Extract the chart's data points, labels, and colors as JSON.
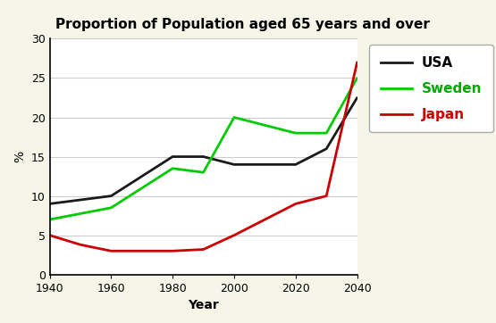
{
  "title": "Proportion of Population aged 65 years and over",
  "xlabel": "Year",
  "ylabel": "%",
  "xlim": [
    1940,
    2040
  ],
  "ylim": [
    0,
    30
  ],
  "xticks": [
    1940,
    1960,
    1980,
    2000,
    2020,
    2040
  ],
  "yticks": [
    0,
    5,
    10,
    15,
    20,
    25,
    30
  ],
  "figure_bg": "#f5f5e8",
  "plot_bg": "#ffffff",
  "series": {
    "USA": {
      "x": [
        1940,
        1960,
        1980,
        1990,
        2000,
        2020,
        2030,
        2040
      ],
      "y": [
        9,
        10,
        15,
        15,
        14,
        14,
        16,
        22.5
      ],
      "color": "#1a1a1a",
      "linewidth": 2.0
    },
    "Sweden": {
      "x": [
        1940,
        1960,
        1980,
        1990,
        2000,
        2020,
        2030,
        2040
      ],
      "y": [
        7,
        8.5,
        13.5,
        13,
        20,
        18,
        18,
        25
      ],
      "color": "#00cc00",
      "linewidth": 2.0
    },
    "Japan": {
      "x": [
        1940,
        1950,
        1960,
        1970,
        1980,
        1990,
        2000,
        2010,
        2020,
        2030,
        2040
      ],
      "y": [
        5,
        3.8,
        3.0,
        3.0,
        3.0,
        3.2,
        5.0,
        7.0,
        9.0,
        10.0,
        27.0
      ],
      "color": "#cc0000",
      "linewidth": 2.0
    }
  },
  "legend_line_colors": {
    "USA": "#1a1a1a",
    "Sweden": "#00cc00",
    "Japan": "#cc0000"
  },
  "legend_text_colors": {
    "USA": "#000000",
    "Sweden": "#00aa00",
    "Japan": "#cc0000"
  },
  "title_fontsize": 11,
  "axis_label_fontsize": 10,
  "tick_fontsize": 9,
  "legend_fontsize": 10
}
